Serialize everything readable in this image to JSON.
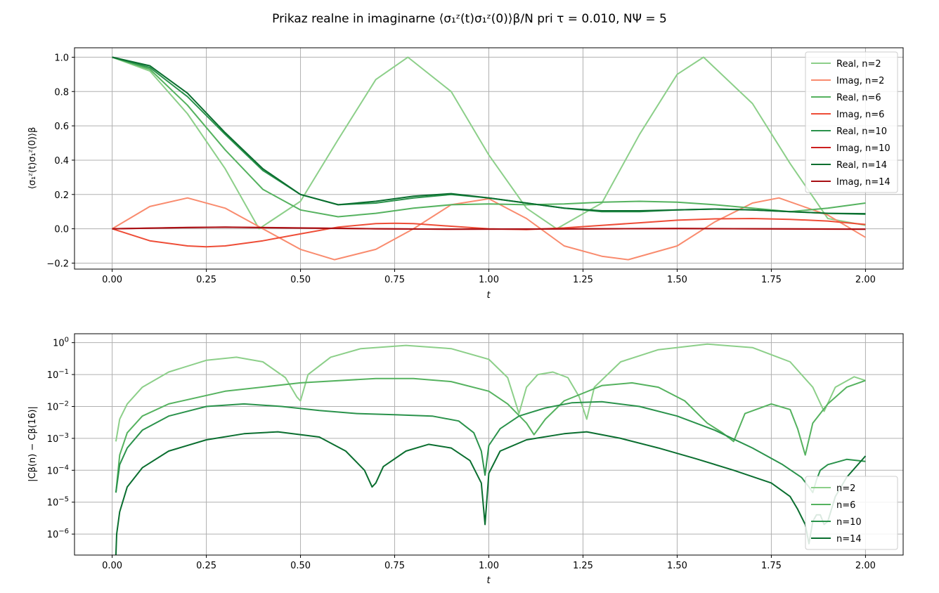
{
  "figure_title": "Prikaz realne in imaginarne ⟨σ₁ᶻ(t)σ₁ᶻ(0)⟩β/N pri τ = 0.010, NΨ = 5",
  "colors": {
    "real_n2": "#8ccf89",
    "imag_n2": "#f98b6e",
    "real_n6": "#55b25f",
    "imag_n6": "#ee4d37",
    "real_n10": "#2a924b",
    "imag_n10": "#cc1f1f",
    "real_n14": "#0a6e2f",
    "imag_n14": "#a80f14",
    "grid": "#b0b0b0"
  },
  "chart_data": [
    {
      "type": "line",
      "xlabel": "t",
      "ylabel": "⟨σ₁ᶻ(t)σ₁ᶻ(0)⟩β",
      "xlim": [
        -0.1,
        2.1
      ],
      "ylim": [
        -0.235,
        1.055
      ],
      "xticks": [
        "0.00",
        "0.25",
        "0.50",
        "0.75",
        "1.00",
        "1.25",
        "1.50",
        "1.75",
        "2.00"
      ],
      "yticks": [
        "−0.2",
        "0.0",
        "0.2",
        "0.4",
        "0.6",
        "0.8",
        "1.0"
      ],
      "grid": true,
      "legend": "top-right",
      "series": [
        {
          "name": "Real, n=2",
          "color_key": "real_n2",
          "x": [
            0,
            0.1,
            0.2,
            0.3,
            0.39,
            0.5,
            0.6,
            0.7,
            0.785,
            0.9,
            1.0,
            1.1,
            1.18,
            1.3,
            1.4,
            1.5,
            1.57,
            1.7,
            1.8,
            1.9,
            2.0
          ],
          "y": [
            1.0,
            0.92,
            0.67,
            0.35,
            0.0,
            0.16,
            0.52,
            0.87,
            1.0,
            0.8,
            0.43,
            0.12,
            0.0,
            0.15,
            0.55,
            0.9,
            1.0,
            0.73,
            0.38,
            0.06,
            0.02
          ]
        },
        {
          "name": "Imag, n=2",
          "color_key": "imag_n2",
          "x": [
            0,
            0.1,
            0.2,
            0.3,
            0.4,
            0.5,
            0.59,
            0.7,
            0.8,
            0.9,
            1.0,
            1.1,
            1.2,
            1.3,
            1.37,
            1.5,
            1.6,
            1.7,
            1.77,
            1.9,
            2.0
          ],
          "y": [
            0.0,
            0.13,
            0.18,
            0.12,
            0.0,
            -0.12,
            -0.18,
            -0.12,
            0.0,
            0.14,
            0.175,
            0.06,
            -0.1,
            -0.16,
            -0.18,
            -0.1,
            0.04,
            0.15,
            0.18,
            0.08,
            -0.05
          ]
        },
        {
          "name": "Real, n=6",
          "color_key": "real_n6",
          "x": [
            0,
            0.1,
            0.2,
            0.3,
            0.4,
            0.5,
            0.6,
            0.7,
            0.8,
            0.9,
            1.0,
            1.1,
            1.2,
            1.3,
            1.4,
            1.5,
            1.6,
            1.7,
            1.8,
            1.9,
            2.0
          ],
          "y": [
            1.0,
            0.93,
            0.72,
            0.46,
            0.23,
            0.11,
            0.07,
            0.09,
            0.12,
            0.14,
            0.145,
            0.14,
            0.145,
            0.155,
            0.16,
            0.155,
            0.14,
            0.12,
            0.1,
            0.12,
            0.15
          ]
        },
        {
          "name": "Imag, n=6",
          "color_key": "imag_n6",
          "x": [
            0,
            0.1,
            0.2,
            0.25,
            0.3,
            0.4,
            0.5,
            0.6,
            0.7,
            0.75,
            0.8,
            0.9,
            1.0,
            1.1,
            1.2,
            1.3,
            1.4,
            1.5,
            1.6,
            1.7,
            1.8,
            1.9,
            2.0
          ],
          "y": [
            0.0,
            -0.07,
            -0.1,
            -0.105,
            -0.1,
            -0.07,
            -0.03,
            0.01,
            0.03,
            0.032,
            0.03,
            0.015,
            0.0,
            -0.005,
            0.005,
            0.02,
            0.035,
            0.05,
            0.058,
            0.06,
            0.055,
            0.045,
            0.025
          ]
        },
        {
          "name": "Real, n=10",
          "color_key": "real_n10",
          "x": [
            0,
            0.1,
            0.2,
            0.3,
            0.4,
            0.5,
            0.6,
            0.7,
            0.8,
            0.9,
            1.0,
            1.1,
            1.2,
            1.3,
            1.4,
            1.5,
            1.6,
            1.7,
            1.8,
            1.9,
            2.0
          ],
          "y": [
            1.0,
            0.94,
            0.77,
            0.55,
            0.34,
            0.2,
            0.14,
            0.15,
            0.18,
            0.2,
            0.18,
            0.15,
            0.12,
            0.1,
            0.1,
            0.11,
            0.115,
            0.11,
            0.1,
            0.09,
            0.085
          ]
        },
        {
          "name": "Imag, n=10",
          "color_key": "imag_n10",
          "x": [
            0,
            0.2,
            0.3,
            0.5,
            0.7,
            0.9,
            1.1,
            1.3,
            1.5,
            1.7,
            1.9,
            2.0
          ],
          "y": [
            0.0,
            0.008,
            0.01,
            0.005,
            0.0,
            -0.003,
            -0.002,
            0.0,
            0.002,
            0.0,
            -0.002,
            -0.003
          ]
        },
        {
          "name": "Real, n=14",
          "color_key": "real_n14",
          "x": [
            0,
            0.1,
            0.2,
            0.3,
            0.4,
            0.5,
            0.6,
            0.7,
            0.8,
            0.9,
            1.0,
            1.1,
            1.2,
            1.3,
            1.4,
            1.5,
            1.6,
            1.7,
            1.8,
            1.9,
            2.0
          ],
          "y": [
            1.0,
            0.95,
            0.79,
            0.56,
            0.35,
            0.2,
            0.14,
            0.16,
            0.19,
            0.205,
            0.18,
            0.15,
            0.12,
            0.105,
            0.105,
            0.11,
            0.115,
            0.11,
            0.1,
            0.09,
            0.088
          ]
        },
        {
          "name": "Imag, n=14",
          "color_key": "imag_n14",
          "x": [
            0,
            0.2,
            0.3,
            0.5,
            0.7,
            0.9,
            1.1,
            1.3,
            1.5,
            1.7,
            1.9,
            2.0
          ],
          "y": [
            0.0,
            0.007,
            0.009,
            0.004,
            0.0,
            -0.002,
            -0.001,
            0.0,
            0.001,
            0.0,
            -0.001,
            -0.002
          ]
        }
      ]
    },
    {
      "type": "line",
      "scale_y": "log",
      "xlabel": "t",
      "ylabel": "|Cβ(n) − Cβ(16)|",
      "xlim": [
        -0.1,
        2.1
      ],
      "ylim": [
        2.2e-07,
        1.9
      ],
      "xticks": [
        "0.00",
        "0.25",
        "0.50",
        "0.75",
        "1.00",
        "1.25",
        "1.50",
        "1.75",
        "2.00"
      ],
      "yticks": [
        {
          "base": "10",
          "exp": "−6",
          "value": 1e-06
        },
        {
          "base": "10",
          "exp": "−5",
          "value": 1e-05
        },
        {
          "base": "10",
          "exp": "−4",
          "value": 0.0001
        },
        {
          "base": "10",
          "exp": "−3",
          "value": 0.001
        },
        {
          "base": "10",
          "exp": "−2",
          "value": 0.01
        },
        {
          "base": "10",
          "exp": "−1",
          "value": 0.1
        },
        {
          "base": "10",
          "exp": "0",
          "value": 1
        }
      ],
      "grid": true,
      "legend": "bottom-right",
      "series": [
        {
          "name": "n=2",
          "color_key": "real_n2",
          "x": [
            0.01,
            0.02,
            0.04,
            0.08,
            0.15,
            0.25,
            0.33,
            0.4,
            0.46,
            0.49,
            0.5,
            0.52,
            0.58,
            0.66,
            0.78,
            0.9,
            1.0,
            1.05,
            1.08,
            1.1,
            1.13,
            1.17,
            1.21,
            1.24,
            1.26,
            1.28,
            1.35,
            1.45,
            1.58,
            1.7,
            1.8,
            1.86,
            1.89,
            1.92,
            1.97,
            2.0
          ],
          "y": [
            0.0008,
            0.004,
            0.012,
            0.04,
            0.12,
            0.28,
            0.35,
            0.25,
            0.08,
            0.02,
            0.015,
            0.1,
            0.35,
            0.65,
            0.82,
            0.65,
            0.3,
            0.08,
            0.006,
            0.04,
            0.1,
            0.12,
            0.08,
            0.02,
            0.004,
            0.04,
            0.25,
            0.6,
            0.9,
            0.7,
            0.25,
            0.04,
            0.007,
            0.04,
            0.085,
            0.065
          ]
        },
        {
          "name": "n=6",
          "color_key": "real_n6",
          "x": [
            0.01,
            0.02,
            0.04,
            0.08,
            0.15,
            0.3,
            0.5,
            0.7,
            0.8,
            0.9,
            1.0,
            1.05,
            1.1,
            1.12,
            1.15,
            1.2,
            1.3,
            1.38,
            1.45,
            1.52,
            1.58,
            1.62,
            1.65,
            1.68,
            1.75,
            1.8,
            1.82,
            1.84,
            1.86,
            1.9,
            1.95,
            2.0
          ],
          "y": [
            2e-05,
            0.0003,
            0.0015,
            0.005,
            0.012,
            0.03,
            0.055,
            0.075,
            0.075,
            0.06,
            0.03,
            0.012,
            0.003,
            0.0013,
            0.004,
            0.015,
            0.045,
            0.055,
            0.04,
            0.015,
            0.003,
            0.0015,
            0.0008,
            0.006,
            0.012,
            0.008,
            0.002,
            0.0003,
            0.003,
            0.012,
            0.04,
            0.065
          ]
        },
        {
          "name": "n=10",
          "color_key": "real_n10",
          "x": [
            0.01,
            0.02,
            0.04,
            0.08,
            0.15,
            0.25,
            0.35,
            0.45,
            0.55,
            0.65,
            0.75,
            0.85,
            0.92,
            0.96,
            0.98,
            0.99,
            1.0,
            1.03,
            1.08,
            1.15,
            1.22,
            1.3,
            1.4,
            1.5,
            1.6,
            1.7,
            1.78,
            1.83,
            1.85,
            1.86,
            1.87,
            1.88,
            1.9,
            1.95,
            2.0
          ],
          "y": [
            2e-05,
            0.00015,
            0.0005,
            0.0018,
            0.005,
            0.01,
            0.012,
            0.01,
            0.0075,
            0.006,
            0.0055,
            0.005,
            0.0035,
            0.0015,
            0.0004,
            7e-05,
            0.0006,
            0.002,
            0.005,
            0.009,
            0.013,
            0.014,
            0.01,
            0.005,
            0.0018,
            0.0005,
            0.00015,
            6e-05,
            3e-05,
            2e-05,
            5e-05,
            0.0001,
            0.00015,
            0.00022,
            0.00019
          ]
        },
        {
          "name": "n=14",
          "color_key": "real_n14",
          "x": [
            0.01,
            0.012,
            0.02,
            0.04,
            0.08,
            0.15,
            0.25,
            0.35,
            0.44,
            0.55,
            0.62,
            0.67,
            0.69,
            0.7,
            0.72,
            0.78,
            0.84,
            0.9,
            0.95,
            0.98,
            0.99,
            1.0,
            1.03,
            1.1,
            1.2,
            1.26,
            1.35,
            1.45,
            1.55,
            1.65,
            1.75,
            1.8,
            1.82,
            1.84,
            1.85,
            1.86,
            1.87,
            1.88,
            1.89,
            1.9,
            1.92,
            1.95,
            2.0
          ],
          "y": [
            2.2e-07,
            1e-06,
            5e-06,
            3e-05,
            0.00012,
            0.0004,
            0.0009,
            0.0014,
            0.0016,
            0.0011,
            0.0004,
            0.0001,
            3e-05,
            4e-05,
            0.00013,
            0.0004,
            0.00065,
            0.0005,
            0.0002,
            4e-05,
            2e-06,
            8e-05,
            0.0004,
            0.0009,
            0.0014,
            0.0016,
            0.001,
            0.0005,
            0.00023,
            0.0001,
            4e-05,
            1.5e-05,
            6e-06,
            2e-06,
            5e-07,
            2.5e-06,
            4e-06,
            4e-06,
            2e-06,
            2.5e-06,
            1.5e-05,
            6e-05,
            0.00028
          ]
        }
      ]
    }
  ]
}
